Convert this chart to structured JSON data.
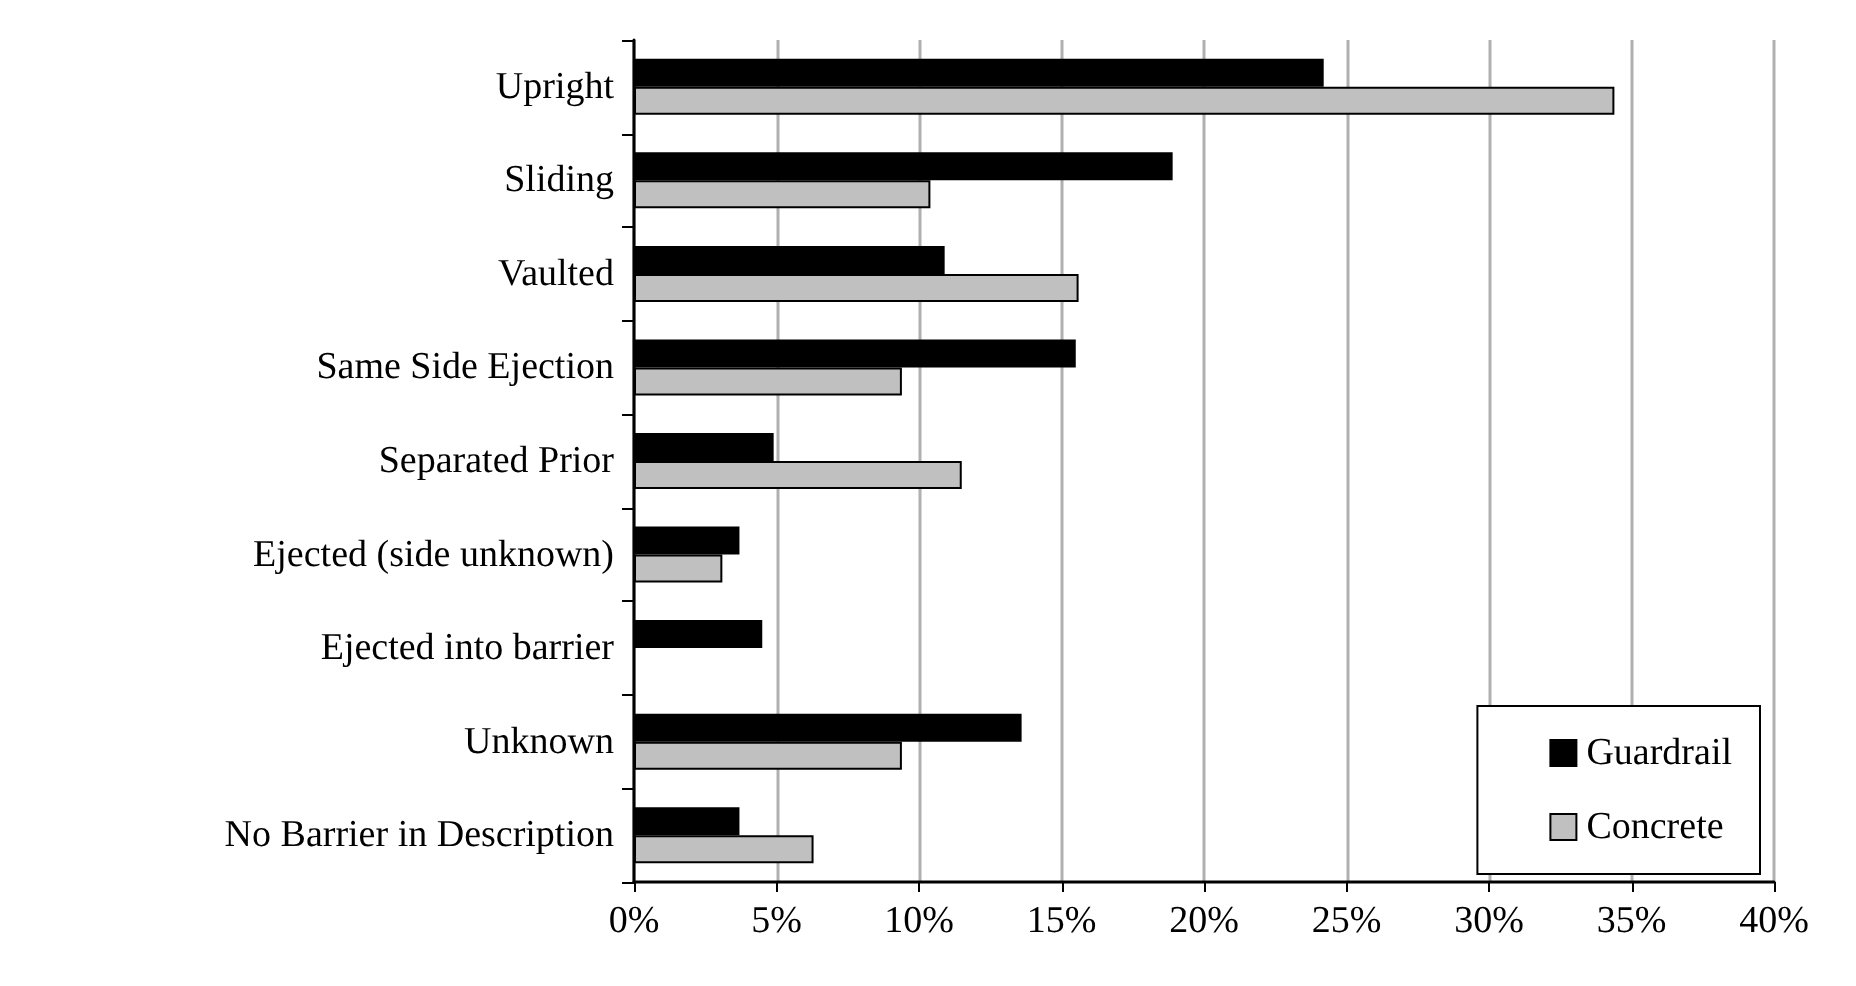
{
  "chart_data": {
    "type": "bar",
    "orientation": "horizontal",
    "categories": [
      "Upright",
      "Sliding",
      "Vaulted",
      "Same Side Ejection",
      "Separated Prior",
      "Ejected (side unknown)",
      "Ejected into barrier",
      "Unknown",
      "No Barrier in Description"
    ],
    "series": [
      {
        "name": "Guardrail",
        "color": "#000000",
        "values": [
          24.2,
          18.9,
          10.9,
          15.5,
          4.9,
          3.7,
          4.5,
          13.6,
          3.7
        ]
      },
      {
        "name": "Concrete",
        "color": "#c0c0c0",
        "values": [
          34.4,
          10.4,
          15.6,
          9.4,
          11.5,
          3.1,
          null,
          9.4,
          6.3
        ]
      }
    ],
    "xlim": [
      0,
      40
    ],
    "xticks": [
      {
        "value": 0,
        "label": "0%"
      },
      {
        "value": 5,
        "label": "5%"
      },
      {
        "value": 10,
        "label": "10%"
      },
      {
        "value": 15,
        "label": "15%"
      },
      {
        "value": 20,
        "label": "20%"
      },
      {
        "value": 25,
        "label": "25%"
      },
      {
        "value": 30,
        "label": "30%"
      },
      {
        "value": 35,
        "label": "35%"
      },
      {
        "value": 40,
        "label": "40%"
      }
    ],
    "grid": "x",
    "legend": "bottom right"
  }
}
